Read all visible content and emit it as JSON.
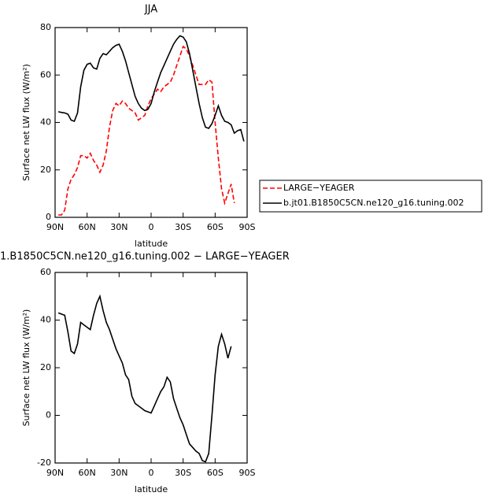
{
  "chart_data": [
    {
      "type": "line",
      "title": "JJA",
      "x_label": "latitude",
      "y_label": "Surface net LW flux (W/m²)",
      "x": [
        87,
        84,
        81,
        78,
        75,
        72,
        69,
        66,
        63,
        60,
        57,
        54,
        51,
        48,
        45,
        42,
        39,
        36,
        33,
        30,
        27,
        24,
        21,
        18,
        15,
        12,
        9,
        6,
        3,
        0,
        -3,
        -6,
        -9,
        -12,
        -15,
        -18,
        -21,
        -24,
        -27,
        -30,
        -33,
        -36,
        -39,
        -42,
        -45,
        -48,
        -51,
        -54,
        -57,
        -60,
        -63,
        -66,
        -69,
        -72,
        -75,
        -78,
        -81,
        -84,
        -87
      ],
      "series": [
        {
          "name": "LARGE−YEAGER",
          "color": "#ff0000",
          "dashed": true,
          "values": [
            1,
            1,
            3,
            12,
            16,
            18,
            21,
            26,
            26,
            25,
            27,
            24,
            22,
            19,
            22,
            28,
            38,
            45,
            48,
            47,
            49,
            48,
            46,
            45,
            44,
            41,
            42,
            43,
            47,
            50,
            52,
            54,
            53,
            55,
            56,
            57,
            60,
            64,
            68,
            72,
            71,
            68,
            64,
            60,
            56,
            56,
            56,
            58,
            57,
            40,
            25,
            12,
            6,
            10,
            14,
            6,
            null,
            null,
            null
          ]
        },
        {
          "name": "b.jt01.B1850C5CN.ne120_g16.tuning.002",
          "color": "#000000",
          "dashed": false,
          "values": [
            44.5,
            44.2,
            44,
            43.5,
            41,
            40.5,
            44,
            55,
            62,
            64.5,
            65,
            63,
            62.5,
            67,
            69,
            68.5,
            70,
            71.5,
            72.5,
            73,
            70,
            66,
            61,
            56,
            51,
            48,
            46,
            45,
            45.5,
            48,
            53,
            57,
            61,
            64,
            67,
            70,
            73,
            75,
            76.5,
            76,
            74,
            69,
            62,
            55,
            48,
            42,
            38,
            37.5,
            39.5,
            43,
            47,
            43,
            40.5,
            40,
            39,
            35.5,
            36.5,
            37,
            32
          ]
        }
      ],
      "xlim": [
        90,
        -90
      ],
      "xticks": [
        {
          "value": 90,
          "label": "90N"
        },
        {
          "value": 60,
          "label": "60N"
        },
        {
          "value": 30,
          "label": "30N"
        },
        0,
        {
          "value": -30,
          "label": "30S"
        },
        {
          "value": -60,
          "label": "60S"
        },
        {
          "value": -90,
          "label": "90S"
        }
      ],
      "ylim": [
        0,
        80
      ],
      "yticks": [
        0,
        20,
        40,
        60,
        80
      ],
      "legend": "right"
    },
    {
      "type": "line",
      "title": "1.B1850C5CN.ne120_g16.tuning.002 − LARGE−YEAGER",
      "x_label": "latitude",
      "y_label": "Surface net LW flux (W/m²)",
      "x": [
        87,
        84,
        81,
        78,
        75,
        72,
        69,
        66,
        63,
        60,
        57,
        54,
        51,
        48,
        45,
        42,
        39,
        36,
        33,
        30,
        27,
        24,
        21,
        18,
        15,
        12,
        9,
        6,
        3,
        0,
        -3,
        -6,
        -9,
        -12,
        -15,
        -18,
        -21,
        -24,
        -27,
        -30,
        -33,
        -36,
        -39,
        -42,
        -45,
        -48,
        -51,
        -54,
        -57,
        -60,
        -63,
        -66,
        -69,
        -72,
        -75,
        -78,
        -81,
        -84,
        -87
      ],
      "series": [
        {
          "color": "#000000",
          "dashed": false,
          "values": [
            43,
            42.5,
            42,
            35,
            27,
            26,
            30,
            39,
            38,
            37,
            36,
            42,
            47,
            50,
            44,
            39,
            36,
            32,
            28,
            25,
            22,
            17,
            15,
            8,
            5,
            4,
            3,
            2,
            1.5,
            1,
            4,
            7,
            10,
            12,
            16,
            14,
            7,
            3,
            -1,
            -4,
            -8,
            -12,
            -13.5,
            -15,
            -16,
            -19,
            -19.5,
            -16,
            0,
            17,
            29,
            34,
            30,
            24,
            29,
            null,
            null,
            null,
            null
          ]
        }
      ],
      "xlim": [
        90,
        -90
      ],
      "xticks": [
        {
          "value": 90,
          "label": "90N"
        },
        {
          "value": 60,
          "label": "60N"
        },
        {
          "value": 30,
          "label": "30N"
        },
        0,
        {
          "value": -30,
          "label": "30S"
        },
        {
          "value": -60,
          "label": "60S"
        },
        {
          "value": -90,
          "label": "90S"
        }
      ],
      "ylim": [
        -20,
        60
      ],
      "yticks": [
        -20,
        0,
        20,
        40,
        60
      ]
    }
  ]
}
